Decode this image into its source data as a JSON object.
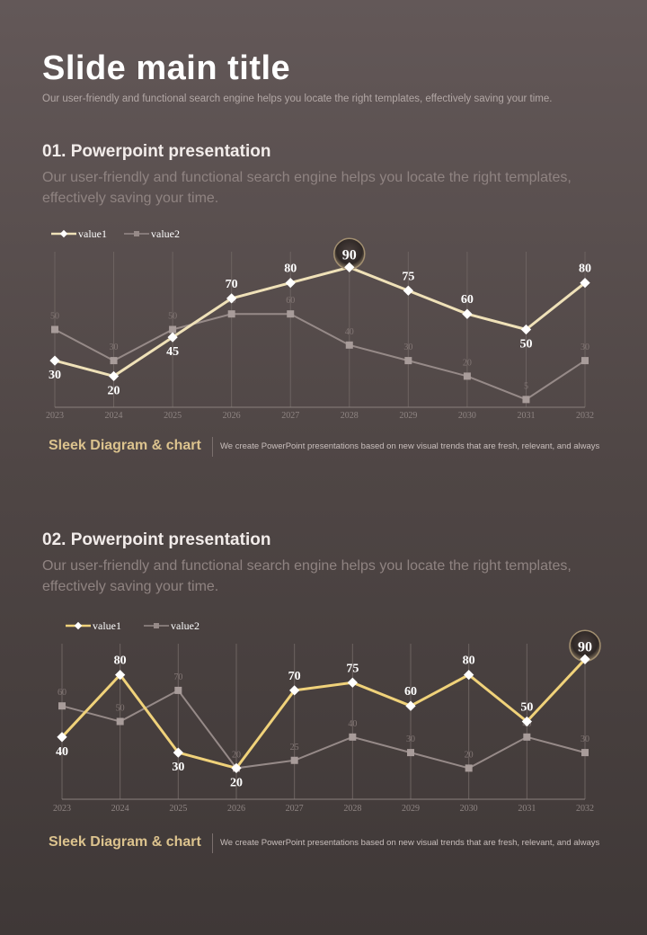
{
  "header": {
    "title": "Slide main title",
    "subtitle": "Our user-friendly and functional search engine helps you locate the right templates, effectively saving your time."
  },
  "sections": [
    {
      "title": "01. Powerpoint presentation",
      "description": "Our user-friendly and functional search engine helps you locate the right templates, effectively saving your time.",
      "footer_title": "Sleek Diagram & chart",
      "footer_text": "We create PowerPoint presentations based on new visual trends that are fresh, relevant, and always"
    },
    {
      "title": "02. Powerpoint presentation",
      "description": "Our user-friendly and functional search engine helps you locate the right templates, effectively saving your time.",
      "footer_title": "Sleek Diagram & chart",
      "footer_text": "We create PowerPoint presentations based on new visual trends that are fresh, relevant, and always"
    }
  ],
  "colors": {
    "value1_chart1": "#efe1b8",
    "value1_chart2": "#f0d27a",
    "value2": "#968a88",
    "grid": "#6d6361",
    "footer_title": "#dcc38e"
  },
  "chart_data": [
    {
      "type": "line",
      "x": [
        "2023",
        "2024",
        "2025",
        "2026",
        "2027",
        "2028",
        "2029",
        "2030",
        "2031",
        "2032"
      ],
      "series": [
        {
          "name": "value1",
          "values": [
            30,
            20,
            45,
            70,
            80,
            90,
            75,
            60,
            50,
            80
          ]
        },
        {
          "name": "value2",
          "values": [
            50,
            30,
            50,
            60,
            60,
            40,
            30,
            20,
            5,
            30
          ]
        }
      ],
      "ylim": [
        0,
        100
      ],
      "grid": "vertical",
      "legend": "top-left",
      "highlight": {
        "series": "value1",
        "label": "90"
      }
    },
    {
      "type": "line",
      "x": [
        "2023",
        "2024",
        "2025",
        "2026",
        "2027",
        "2028",
        "2029",
        "2030",
        "2031",
        "2032"
      ],
      "series": [
        {
          "name": "value1",
          "values": [
            40,
            80,
            30,
            20,
            70,
            75,
            60,
            80,
            50,
            90
          ]
        },
        {
          "name": "value2",
          "values": [
            60,
            50,
            70,
            20,
            25,
            40,
            30,
            20,
            40,
            30
          ]
        }
      ],
      "ylim": [
        0,
        100
      ],
      "grid": "vertical",
      "legend": "top-left",
      "highlight": {
        "series": "value1",
        "label": "90"
      }
    }
  ]
}
